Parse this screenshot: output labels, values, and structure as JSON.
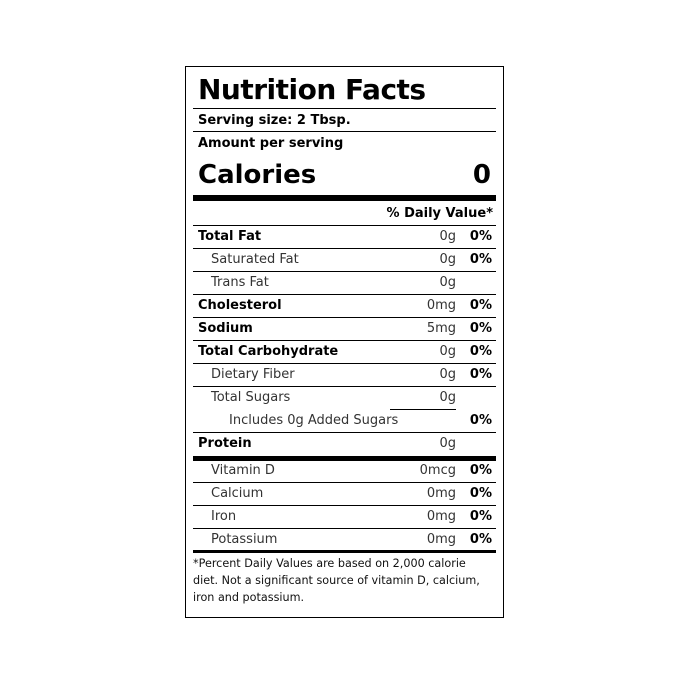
{
  "label": {
    "title": "Nutrition Facts",
    "serving_size": "Serving size: 2 Tbsp.",
    "amount_per_serving": "Amount per serving",
    "calories_label": "Calories",
    "calories_value": "0",
    "daily_value_header": "% Daily Value*",
    "nutrients": [
      {
        "name": "Total Fat",
        "amount": "0g",
        "dv": "0%"
      },
      {
        "name": "Saturated Fat",
        "amount": "0g",
        "dv": "0%"
      },
      {
        "name": "Trans Fat",
        "amount": "0g",
        "dv": ""
      },
      {
        "name": "Cholesterol",
        "amount": "0mg",
        "dv": "0%"
      },
      {
        "name": "Sodium",
        "amount": "5mg",
        "dv": "0%"
      },
      {
        "name": "Total Carbohydrate",
        "amount": "0g",
        "dv": "0%"
      },
      {
        "name": "Dietary Fiber",
        "amount": "0g",
        "dv": "0%"
      },
      {
        "name": "Total Sugars",
        "amount": "0g",
        "dv": ""
      },
      {
        "name": "Includes 0g Added Sugars",
        "amount": "",
        "dv": "0%"
      },
      {
        "name": "Protein",
        "amount": "0g",
        "dv": ""
      }
    ],
    "vitamins": [
      {
        "name": "Vitamin D",
        "amount": "0mcg",
        "dv": "0%"
      },
      {
        "name": "Calcium",
        "amount": "0mg",
        "dv": "0%"
      },
      {
        "name": "Iron",
        "amount": "0mg",
        "dv": "0%"
      },
      {
        "name": "Potassium",
        "amount": "0mg",
        "dv": "0%"
      }
    ],
    "footnote": "*Percent Daily Values are based on 2,000 calorie diet. Not a significant source of vitamin D, calcium, iron and potassium."
  }
}
